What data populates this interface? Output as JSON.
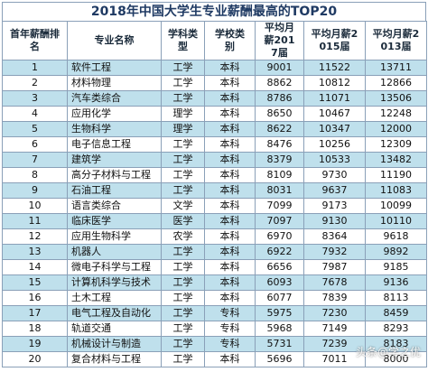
{
  "title": "2018年中国大学生专业薪酬最高的TOP20",
  "headers": {
    "rank": "首年薪酬排名",
    "major": "专业名称",
    "category": "学科类型",
    "school": "学校类别",
    "y2017": "平均月薪2017届",
    "y2015": "平均月薪2015届",
    "y2013": "平均月薪2013届"
  },
  "rows": [
    {
      "rank": "1",
      "major": "软件工程",
      "category": "工学",
      "school": "本科",
      "y2017": "9001",
      "y2015": "11522",
      "y2013": "13711"
    },
    {
      "rank": "2",
      "major": "材料物理",
      "category": "工学",
      "school": "本科",
      "y2017": "8862",
      "y2015": "10812",
      "y2013": "12866"
    },
    {
      "rank": "3",
      "major": "汽车类综合",
      "category": "工学",
      "school": "本科",
      "y2017": "8786",
      "y2015": "11071",
      "y2013": "13506"
    },
    {
      "rank": "4",
      "major": "应用化学",
      "category": "理学",
      "school": "本科",
      "y2017": "8650",
      "y2015": "10467",
      "y2013": "12248"
    },
    {
      "rank": "5",
      "major": "生物科学",
      "category": "理学",
      "school": "本科",
      "y2017": "8622",
      "y2015": "10347",
      "y2013": "12000"
    },
    {
      "rank": "6",
      "major": "电子信息工程",
      "category": "工学",
      "school": "本科",
      "y2017": "8476",
      "y2015": "10256",
      "y2013": "12309"
    },
    {
      "rank": "7",
      "major": "建筑学",
      "category": "工学",
      "school": "本科",
      "y2017": "8379",
      "y2015": "10533",
      "y2013": "13482"
    },
    {
      "rank": "8",
      "major": "高分子材料与工程",
      "category": "工学",
      "school": "本科",
      "y2017": "8109",
      "y2015": "9730",
      "y2013": "11190"
    },
    {
      "rank": "9",
      "major": "石油工程",
      "category": "工学",
      "school": "本科",
      "y2017": "8031",
      "y2015": "9637",
      "y2013": "11083"
    },
    {
      "rank": "10",
      "major": "语言类综合",
      "category": "文学",
      "school": "本科",
      "y2017": "7099",
      "y2015": "9173",
      "y2013": "10099"
    },
    {
      "rank": "11",
      "major": "临床医学",
      "category": "医学",
      "school": "本科",
      "y2017": "7097",
      "y2015": "9130",
      "y2013": "10110"
    },
    {
      "rank": "12",
      "major": "应用生物科学",
      "category": "农学",
      "school": "本科",
      "y2017": "6970",
      "y2015": "8364",
      "y2013": "9618"
    },
    {
      "rank": "13",
      "major": "机器人",
      "category": "工学",
      "school": "本科",
      "y2017": "6922",
      "y2015": "7932",
      "y2013": "9892"
    },
    {
      "rank": "14",
      "major": "微电子科学与工程",
      "category": "工学",
      "school": "本科",
      "y2017": "6656",
      "y2015": "7987",
      "y2013": "9185"
    },
    {
      "rank": "15",
      "major": "计算机科学与技术",
      "category": "工学",
      "school": "本科",
      "y2017": "6093",
      "y2015": "7678",
      "y2013": "9136"
    },
    {
      "rank": "16",
      "major": "土木工程",
      "category": "工学",
      "school": "本科",
      "y2017": "6077",
      "y2015": "7839",
      "y2013": "8113"
    },
    {
      "rank": "17",
      "major": "电气工程及自动化",
      "category": "工学",
      "school": "专科",
      "y2017": "5975",
      "y2015": "7230",
      "y2013": "8459"
    },
    {
      "rank": "18",
      "major": "轨道交通",
      "category": "工学",
      "school": "专科",
      "y2017": "5968",
      "y2015": "7149",
      "y2013": "8293"
    },
    {
      "rank": "19",
      "major": "机械设计与制造",
      "category": "工学",
      "school": "专科",
      "y2017": "5731",
      "y2015": "7239",
      "y2013": "8183"
    },
    {
      "rank": "20",
      "major": "复合材料与工程",
      "category": "工学",
      "school": "本科",
      "y2017": "5696",
      "y2015": "7011",
      "y2013": "8000"
    }
  ],
  "watermark": "头条@学之优"
}
